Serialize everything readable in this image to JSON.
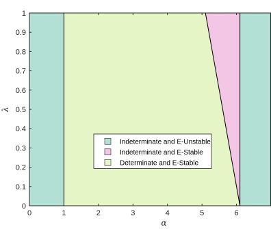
{
  "chart_data": {
    "type": "area",
    "title": "",
    "xlabel": "α",
    "ylabel": "λ",
    "xlim": [
      0,
      7
    ],
    "ylim": [
      0,
      1
    ],
    "x_ticks": [
      "0",
      "1",
      "2",
      "3",
      "4",
      "5",
      "6"
    ],
    "y_ticks": [
      "0",
      "0.1",
      "0.2",
      "0.3",
      "0.4",
      "0.5",
      "0.6",
      "0.7",
      "0.8",
      "0.9",
      "1"
    ],
    "x_tick_values": [
      0,
      1,
      2,
      3,
      4,
      5,
      6
    ],
    "y_tick_values": [
      0,
      0.1,
      0.2,
      0.3,
      0.4,
      0.5,
      0.6,
      0.7,
      0.8,
      0.9,
      1
    ],
    "legend_position": "center",
    "grid": false,
    "regions": [
      {
        "name": "Indeterminate and E-Unstable",
        "color": "#b3e0d4",
        "polygons": [
          [
            [
              0,
              0
            ],
            [
              1,
              0
            ],
            [
              1,
              1
            ],
            [
              0,
              1
            ]
          ],
          [
            [
              6.1,
              0
            ],
            [
              7,
              0
            ],
            [
              7,
              1
            ],
            [
              6.1,
              1
            ]
          ]
        ]
      },
      {
        "name": "Indeterminate and E-Stable",
        "color": "#f2c6e4",
        "polygons": [
          [
            [
              5.1,
              1
            ],
            [
              6.1,
              1
            ],
            [
              6.1,
              0
            ]
          ]
        ]
      },
      {
        "name": "Determinate and E-Stable",
        "color": "#e6f5c6",
        "polygons": [
          [
            [
              1,
              0
            ],
            [
              6.1,
              0
            ],
            [
              5.1,
              1
            ],
            [
              1,
              1
            ]
          ]
        ]
      }
    ],
    "boundaries": [
      [
        [
          1,
          0
        ],
        [
          1,
          1
        ]
      ],
      [
        [
          6.1,
          0
        ],
        [
          6.1,
          1
        ]
      ],
      [
        [
          5.1,
          1
        ],
        [
          6.1,
          0
        ]
      ]
    ]
  }
}
